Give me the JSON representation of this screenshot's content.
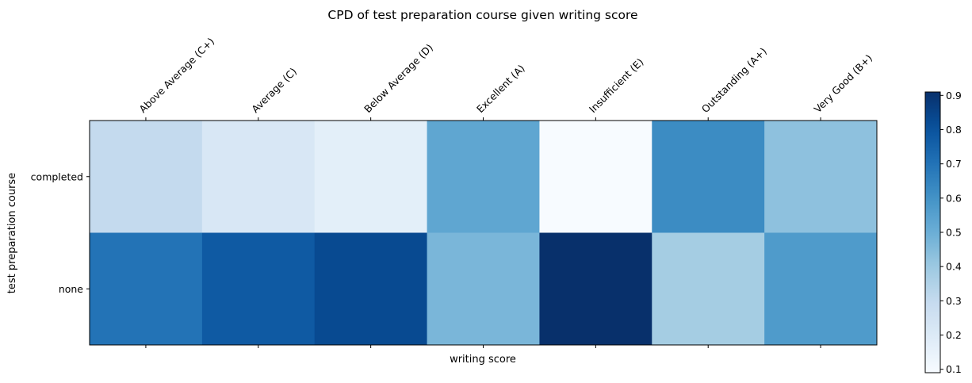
{
  "chart_data": {
    "type": "heatmap",
    "title": "CPD of test preparation course given writing score",
    "xlabel": "writing score",
    "ylabel": "test preparation course",
    "x_categories": [
      "Above Average (C+)",
      "Average (C)",
      "Below Average (D)",
      "Excellent (A)",
      "Insufficient (E)",
      "Outstanding (A+)",
      "Very Good (B+)"
    ],
    "y_categories": [
      "completed",
      "none"
    ],
    "values": [
      [
        0.3,
        0.22,
        0.17,
        0.53,
        0.09,
        0.62,
        0.43
      ],
      [
        0.7,
        0.78,
        0.83,
        0.47,
        0.91,
        0.38,
        0.57
      ]
    ],
    "colormap": "Blues",
    "color_range": [
      0.09,
      0.91
    ],
    "colorbar_ticks": [
      0.1,
      0.2,
      0.3,
      0.4,
      0.5,
      0.6,
      0.7,
      0.8,
      0.9
    ],
    "x_tick_position": "top",
    "grid": false
  }
}
